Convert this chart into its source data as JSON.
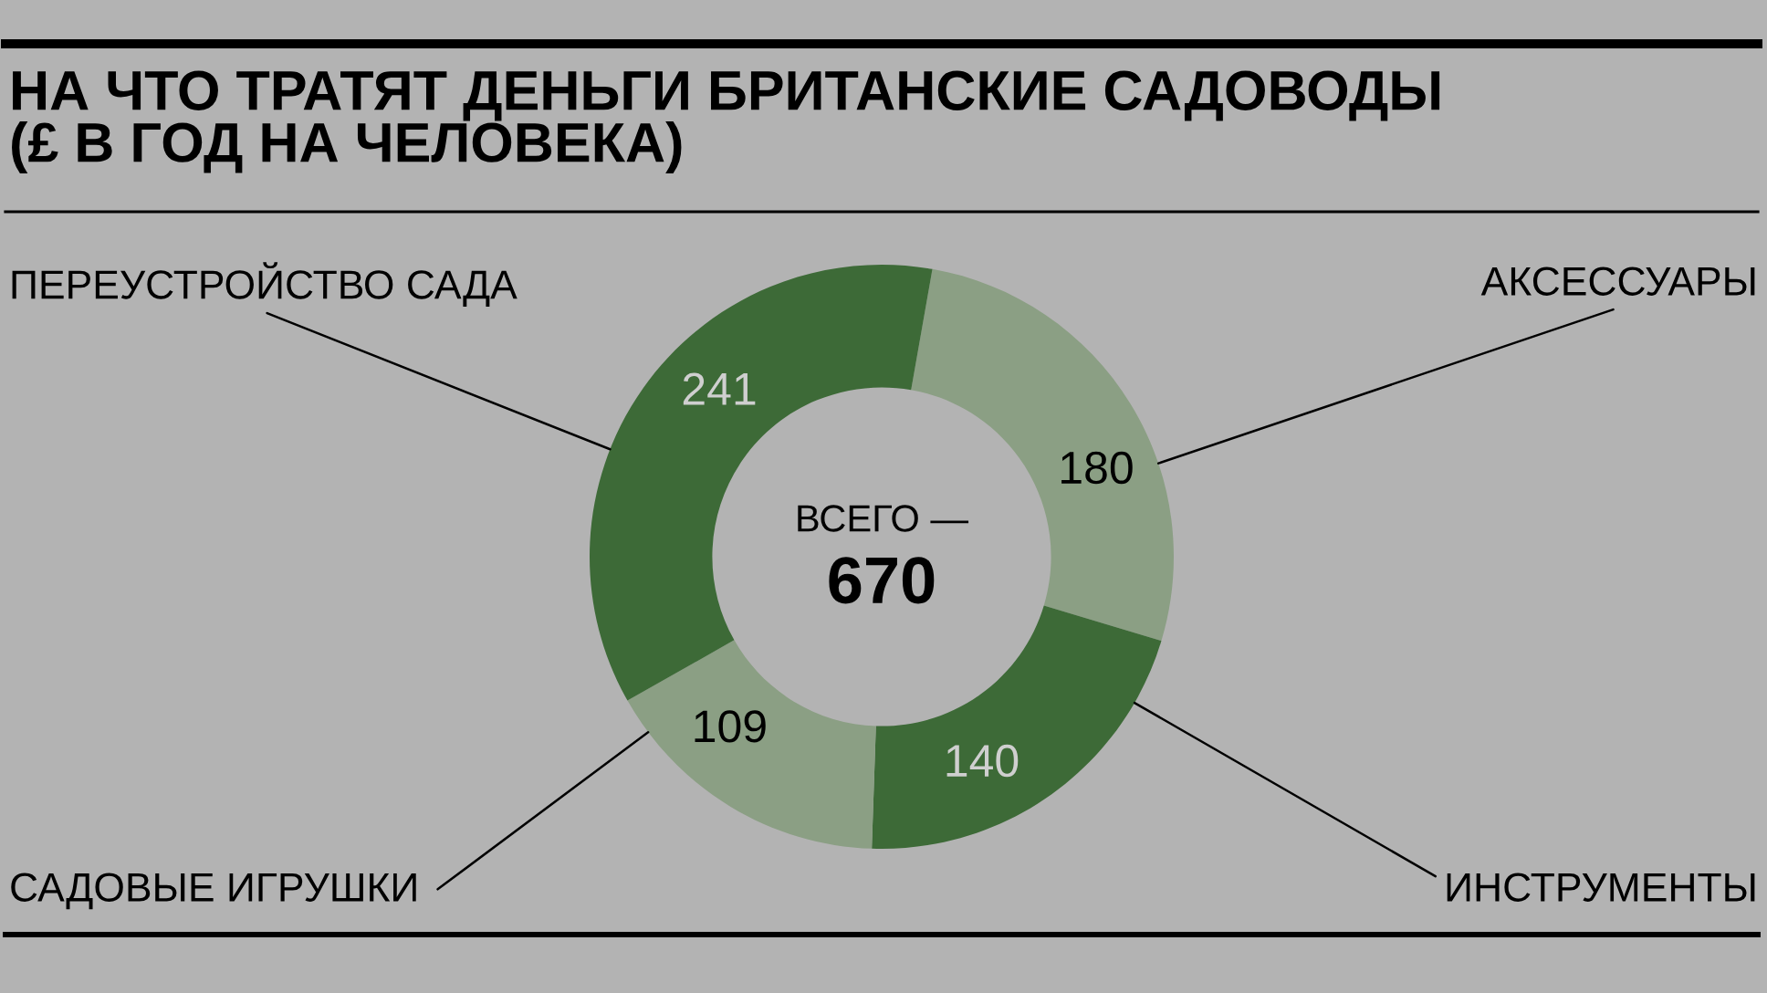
{
  "chart_data": {
    "type": "donut",
    "title": "НА ЧТО ТРАТЯТ ДЕНЬГИ БРИТАНСКИЕ САДОВОДЫ\n(£ В ГОД НА ЧЕЛОВЕКА)",
    "categories": [
      "АКСЕССУАРЫ",
      "ИНСТРУМЕНТЫ",
      "САДОВЫЕ ИГРУШКИ",
      "ПЕРЕУСТРОЙСТВО САДА"
    ],
    "values": [
      180,
      140,
      109,
      241
    ],
    "colors": [
      "#8b9f84",
      "#3d6a37",
      "#8b9f84",
      "#3d6a37"
    ],
    "data_labels": true,
    "annotations": [
      "ВСЕГО —",
      "670"
    ]
  }
}
